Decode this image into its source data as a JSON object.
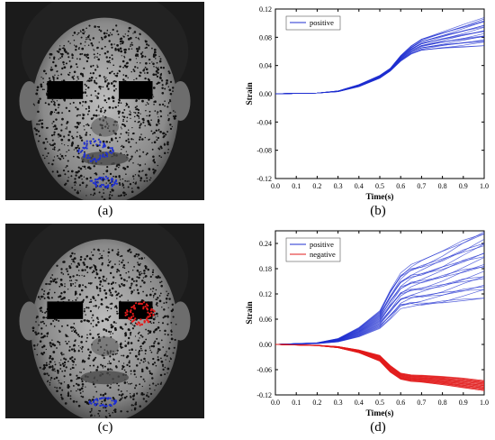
{
  "captions": {
    "a": "(a)",
    "b": "(b)",
    "c": "(c)",
    "d": "(d)"
  },
  "colors": {
    "positive": "#1f2fd0",
    "negative": "#e11b1b",
    "photo_bg": "#1c1c1c"
  },
  "chart_data": [
    {
      "type": "line",
      "xlabel": "Time(s)",
      "ylabel": "Strain",
      "xlim": [
        0.0,
        1.0
      ],
      "ylim": [
        -0.12,
        0.12
      ],
      "xticks": [
        "0.0",
        "0.1",
        "0.2",
        "0.3",
        "0.4",
        "0.5",
        "0.6",
        "0.7",
        "0.8",
        "0.9",
        "1.0"
      ],
      "yticks": [
        "-0.12",
        "-0.08",
        "-0.04",
        "0.00",
        "0.04",
        "0.08",
        "0.12"
      ],
      "legend": {
        "placement": "top-left",
        "entries": [
          "positive"
        ]
      },
      "series": [
        {
          "name": "positive",
          "x": [
            0,
            0.2,
            0.3,
            0.4,
            0.5,
            0.55,
            0.6,
            0.65,
            0.7,
            0.8,
            0.9,
            1.0
          ],
          "band_low": [
            0,
            0.001,
            0.003,
            0.01,
            0.022,
            0.032,
            0.046,
            0.056,
            0.061,
            0.064,
            0.066,
            0.068
          ],
          "band_high": [
            0,
            0.001,
            0.004,
            0.013,
            0.026,
            0.036,
            0.054,
            0.068,
            0.078,
            0.088,
            0.098,
            0.108
          ],
          "count": 22
        }
      ]
    },
    {
      "type": "line",
      "xlabel": "Time(s)",
      "ylabel": "Strain",
      "xlim": [
        0.0,
        1.0
      ],
      "ylim": [
        -0.12,
        0.27
      ],
      "xticks": [
        "0.0",
        "0.1",
        "0.2",
        "0.3",
        "0.4",
        "0.5",
        "0.6",
        "0.7",
        "0.8",
        "0.9",
        "1.0"
      ],
      "yticks": [
        "-0.12",
        "-0.06",
        "0.00",
        "0.06",
        "0.12",
        "0.18",
        "0.24"
      ],
      "legend": {
        "placement": "top-left",
        "entries": [
          "positive",
          "negative"
        ]
      },
      "series": [
        {
          "name": "positive",
          "x": [
            0,
            0.2,
            0.3,
            0.4,
            0.5,
            0.55,
            0.6,
            0.65,
            0.7,
            0.8,
            0.9,
            1.0
          ],
          "band_low": [
            0,
            0.002,
            0.006,
            0.018,
            0.038,
            0.06,
            0.085,
            0.09,
            0.09,
            0.096,
            0.104,
            0.11
          ],
          "band_high": [
            0,
            0.004,
            0.014,
            0.04,
            0.08,
            0.13,
            0.17,
            0.19,
            0.2,
            0.222,
            0.248,
            0.272
          ],
          "count": 24
        },
        {
          "name": "negative",
          "x": [
            0,
            0.2,
            0.3,
            0.4,
            0.5,
            0.55,
            0.6,
            0.65,
            0.7,
            0.8,
            0.9,
            1.0
          ],
          "band_low": [
            0,
            -0.003,
            -0.008,
            -0.02,
            -0.04,
            -0.066,
            -0.083,
            -0.088,
            -0.09,
            -0.096,
            -0.103,
            -0.11
          ],
          "band_high": [
            0,
            -0.002,
            -0.005,
            -0.013,
            -0.026,
            -0.05,
            -0.068,
            -0.072,
            -0.073,
            -0.076,
            -0.08,
            -0.086
          ],
          "count": 30
        }
      ]
    }
  ]
}
